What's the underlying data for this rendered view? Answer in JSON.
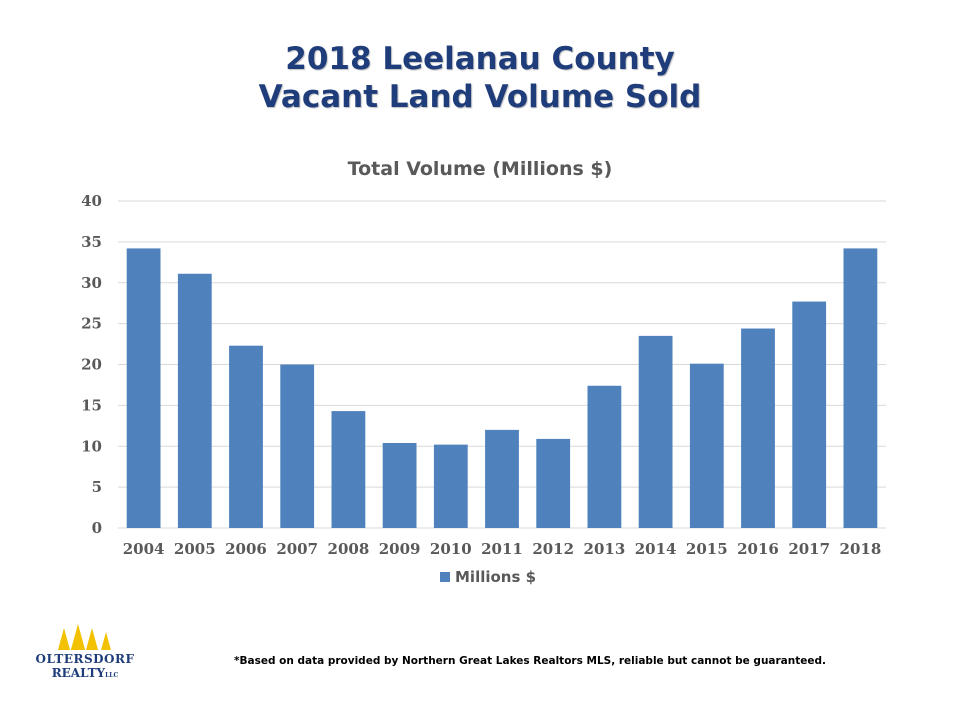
{
  "slide": {
    "title_line1": "2018 Leelanau County",
    "title_line2": "Vacant Land Volume Sold"
  },
  "chart_data": {
    "type": "bar",
    "title": "Total Volume (Millions $)",
    "categories": [
      "2004",
      "2005",
      "2006",
      "2007",
      "2008",
      "2009",
      "2010",
      "2011",
      "2012",
      "2013",
      "2014",
      "2015",
      "2016",
      "2017",
      "2018"
    ],
    "series": [
      {
        "name": "Millions $",
        "values": [
          34.2,
          31.1,
          22.3,
          20.0,
          14.3,
          10.4,
          10.2,
          12.0,
          10.9,
          17.4,
          23.5,
          20.1,
          24.4,
          27.7,
          34.2
        ]
      }
    ],
    "xlabel": "",
    "ylabel": "",
    "ylim": [
      0,
      40
    ],
    "yticks": [
      0,
      5,
      10,
      15,
      20,
      25,
      30,
      35,
      40
    ],
    "grid": true,
    "legend": "bottom",
    "bar_color": "#4f81bd",
    "grid_color": "#d9d9d9"
  },
  "footnote": "*Based on data provided by Northern Great Lakes Realtors MLS, reliable but cannot be guaranteed.",
  "logo": {
    "name": "OLTERSDORF",
    "sub": "REALTY",
    "suffix": "LLC",
    "tree_color": "#f2c200",
    "text_color": "#1f3d7a"
  }
}
